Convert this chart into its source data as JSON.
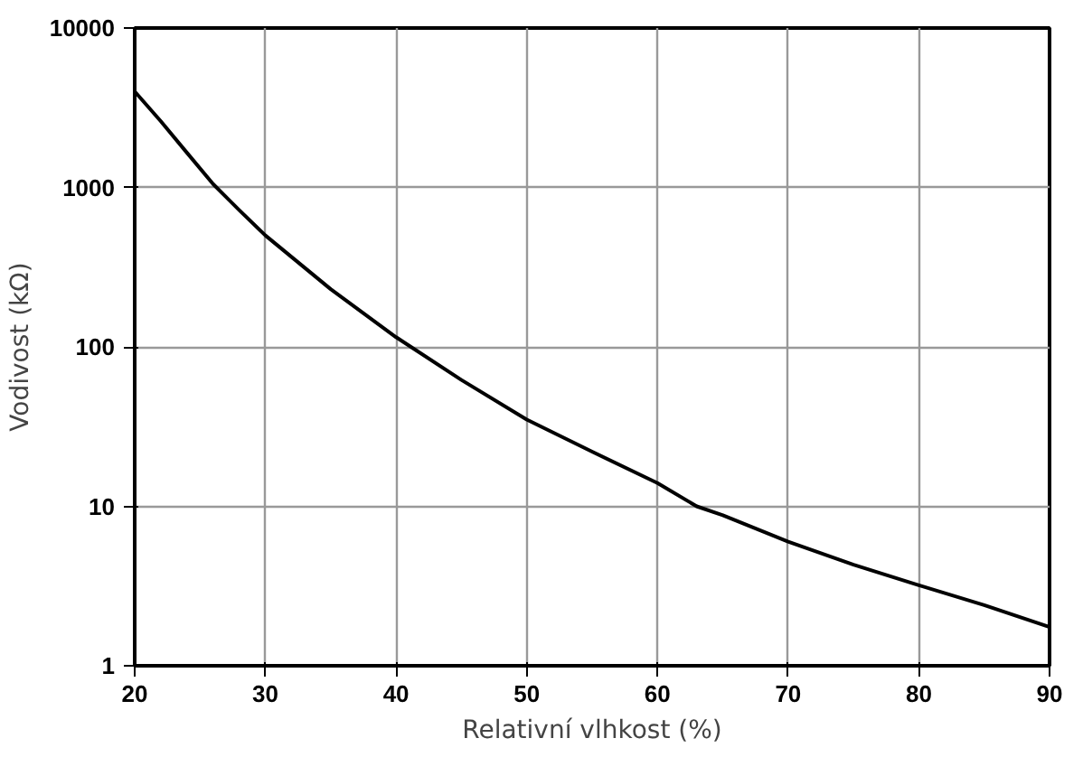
{
  "chart_data": {
    "type": "line",
    "xlabel": "Relativní vlhkost (%)",
    "ylabel": "Vodivost (kΩ)",
    "x": [
      20,
      22,
      24,
      26,
      28,
      30,
      35,
      40,
      45,
      50,
      55,
      60,
      63,
      65,
      70,
      75,
      80,
      85,
      90
    ],
    "series": [
      {
        "color": "#000000",
        "values": [
          4000,
          2600,
          1650,
          1050,
          720,
          500,
          230,
          115,
          62,
          35,
          22,
          14,
          10,
          8.8,
          6,
          4.3,
          3.2,
          2.4,
          1.75
        ]
      }
    ],
    "xlim": [
      20,
      90
    ],
    "ylim": [
      1,
      10000
    ],
    "xticks": [
      20,
      30,
      40,
      50,
      60,
      70,
      80,
      90
    ],
    "yticks": [
      1,
      10,
      100,
      1000,
      10000
    ],
    "log": "y",
    "grid": true,
    "marker": "none",
    "line_style": "solid"
  }
}
